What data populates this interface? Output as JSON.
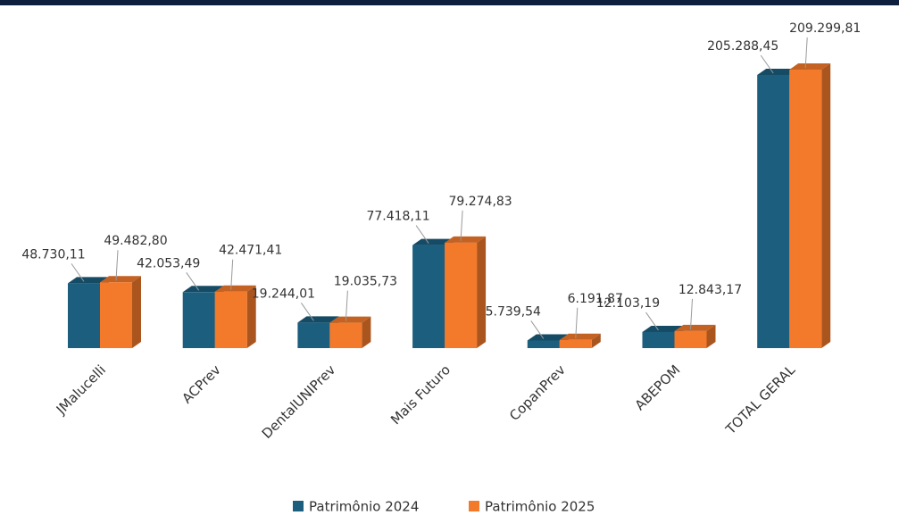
{
  "chart_data": {
    "type": "bar3d",
    "categories": [
      "JMalucelli",
      "ACPrev",
      "DentalUNIPrev",
      "Mais Futuro",
      "CopanPrev",
      "ABEPOM",
      "TOTAL GERAL"
    ],
    "series": [
      {
        "name": "Patrimônio 2024",
        "color": "#1b5e7e",
        "values": [
          48730.11,
          42053.49,
          19244.01,
          77418.11,
          5739.54,
          12103.19,
          205288.45
        ],
        "value_labels": [
          "48.730,11",
          "42.053,49",
          "19.244,01",
          "77.418,11",
          "5.739,54",
          "12.103,19",
          "205.288,45"
        ]
      },
      {
        "name": "Patrimônio 2025",
        "color": "#f47a2b",
        "values": [
          49482.8,
          42471.41,
          19035.73,
          79274.83,
          6191.87,
          12843.17,
          209299.81
        ],
        "value_labels": [
          "49.482,80",
          "42.471,41",
          "19.035,73",
          "79.274,83",
          "6.191,87",
          "12.843,17",
          "209.299,81"
        ]
      }
    ],
    "legend": "bottom"
  }
}
